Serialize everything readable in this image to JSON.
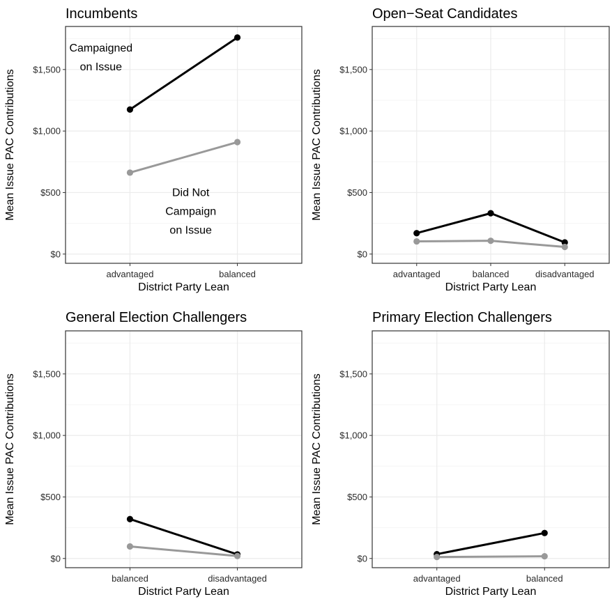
{
  "colors": {
    "campaigned": "#000000",
    "not_campaigned": "#999999",
    "panel_border": "#333333",
    "grid_major": "#ebebeb",
    "grid_minor": "#f5f5f5"
  },
  "chart_data": [
    {
      "type": "line",
      "title": "Incumbents",
      "xlabel": "District Party Lean",
      "ylabel": "Mean Issue PAC Contributions",
      "categories": [
        "advantaged",
        "balanced"
      ],
      "ylim": [
        -75,
        1850
      ],
      "yticks": [
        0,
        500,
        1000,
        1500
      ],
      "ytick_labels": [
        "$0",
        "$500",
        "$1,000",
        "$1,500"
      ],
      "grid": true,
      "series": [
        {
          "values": [
            1175,
            1760
          ]
        },
        {
          "values": [
            662,
            910
          ]
        }
      ],
      "annotations": [
        {
          "lines": [
            "Campaigned",
            "on Issue"
          ],
          "x": 0.15,
          "y": 1645
        },
        {
          "lines": [
            "Did Not",
            "Campaign",
            "on Issue"
          ],
          "x": 0.53,
          "y": 470
        }
      ]
    },
    {
      "type": "line",
      "title": "Open−Seat Candidates",
      "xlabel": "District Party Lean",
      "ylabel": "Mean Issue PAC Contributions",
      "categories": [
        "advantaged",
        "balanced",
        "disadvantaged"
      ],
      "ylim": [
        -75,
        1850
      ],
      "yticks": [
        0,
        500,
        1000,
        1500
      ],
      "ytick_labels": [
        "$0",
        "$500",
        "$1,000",
        "$1,500"
      ],
      "grid": true,
      "series": [
        {
          "values": [
            170,
            332,
            95
          ]
        },
        {
          "values": [
            103,
            108,
            58
          ]
        }
      ],
      "annotations": []
    },
    {
      "type": "line",
      "title": "General Election Challengers",
      "xlabel": "District Party Lean",
      "ylabel": "Mean Issue PAC Contributions",
      "categories": [
        "balanced",
        "disadvantaged"
      ],
      "ylim": [
        -75,
        1850
      ],
      "yticks": [
        0,
        500,
        1000,
        1500
      ],
      "ytick_labels": [
        "$0",
        "$500",
        "$1,000",
        "$1,500"
      ],
      "grid": true,
      "series": [
        {
          "values": [
            320,
            33
          ]
        },
        {
          "values": [
            98,
            20
          ]
        }
      ],
      "annotations": []
    },
    {
      "type": "line",
      "title": "Primary Election Challengers",
      "xlabel": "District Party Lean",
      "ylabel": "Mean Issue PAC Contributions",
      "categories": [
        "advantaged",
        "balanced"
      ],
      "ylim": [
        -75,
        1850
      ],
      "yticks": [
        0,
        500,
        1000,
        1500
      ],
      "ytick_labels": [
        "$0",
        "$500",
        "$1,000",
        "$1,500"
      ],
      "grid": true,
      "series": [
        {
          "values": [
            35,
            207
          ]
        },
        {
          "values": [
            12,
            18
          ]
        }
      ],
      "annotations": []
    }
  ]
}
